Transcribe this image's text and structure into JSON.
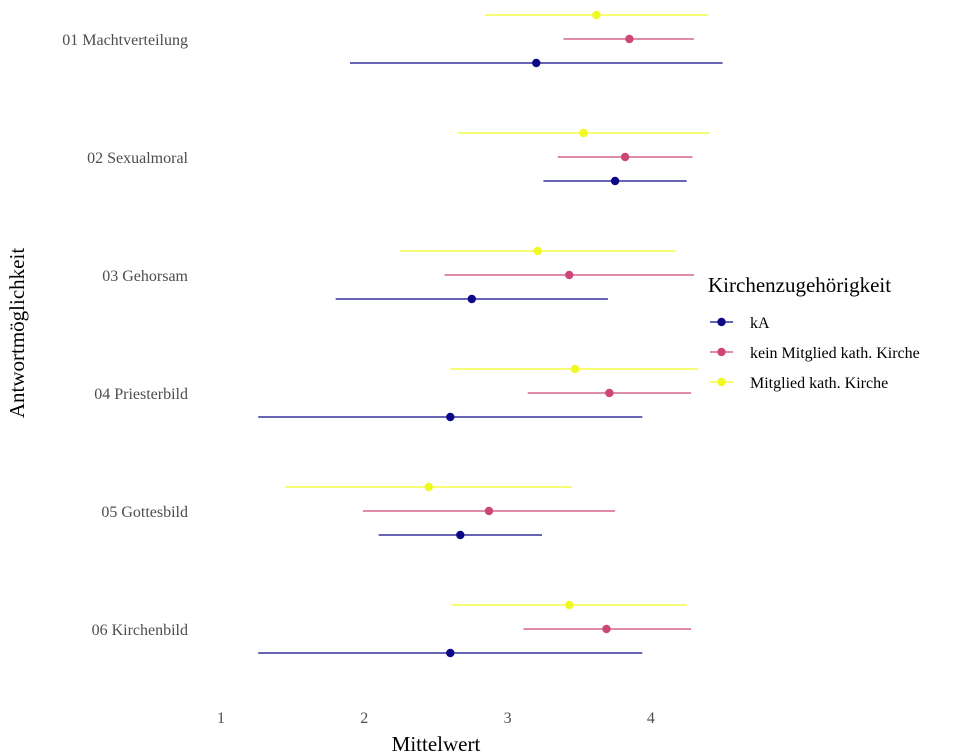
{
  "chart_data": {
    "type": "dot-errorbar",
    "xlabel": "Mittelwert",
    "ylabel": "Antwortmöglichkeit",
    "x_ticks": [
      1,
      2,
      3,
      4
    ],
    "xlim": [
      0.98,
      4.52
    ],
    "grid": false,
    "legend": {
      "title": "Kirchenzugehörigkeit",
      "position": "right"
    },
    "categories": [
      "01 Machtverteilung",
      "02 Sexualmoral",
      "03 Gehorsam",
      "04 Priesterbild",
      "05 Gottesbild",
      "06 Kirchenbild"
    ],
    "series": [
      {
        "name": "kA",
        "color": "#0d0887",
        "mean": [
          3.2,
          3.75,
          2.75,
          2.6,
          2.67,
          2.6
        ],
        "low": [
          1.9,
          3.25,
          1.8,
          1.26,
          2.1,
          1.26
        ],
        "high": [
          4.5,
          4.25,
          3.7,
          3.94,
          3.24,
          3.94
        ]
      },
      {
        "name": "kein Mitglied kath. Kirche",
        "color": "#cc4778",
        "mean": [
          3.85,
          3.82,
          3.43,
          3.71,
          2.87,
          3.69
        ],
        "low": [
          3.39,
          3.35,
          2.56,
          3.14,
          1.99,
          3.11
        ],
        "high": [
          4.3,
          4.29,
          4.3,
          4.28,
          3.75,
          4.28
        ]
      },
      {
        "name": "Mitglied kath. Kirche",
        "color": "#f0f921",
        "mean": [
          3.62,
          3.53,
          3.21,
          3.47,
          2.45,
          3.43
        ],
        "low": [
          2.84,
          2.65,
          2.25,
          2.6,
          1.45,
          2.61
        ],
        "high": [
          4.4,
          4.41,
          4.17,
          4.33,
          3.45,
          4.25
        ]
      }
    ]
  }
}
